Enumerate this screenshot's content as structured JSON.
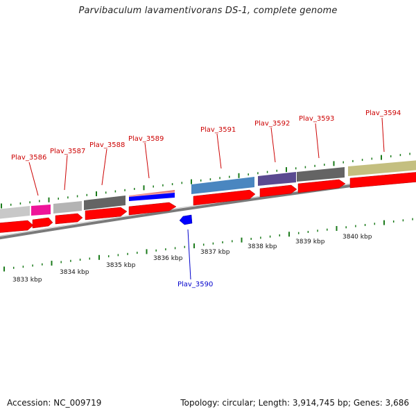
{
  "title": "Parvibaculum lavamentivorans DS-1, complete genome",
  "footer": {
    "accession": "Accession: NC_009719",
    "summary": "Topology: circular; Length: 3,914,745 bp; Genes: 3,686"
  },
  "colors": {
    "forward_gene": "#ff0000",
    "reverse_gene": "#0000ff",
    "backbone": "#808080",
    "tick": "#1a7a1a",
    "label_forward": "#cc0000",
    "label_reverse": "#0000cc"
  },
  "scale_labels": [
    "3833 kbp",
    "3834 kbp",
    "3835 kbp",
    "3836 kbp",
    "3837 kbp",
    "3838 kbp",
    "3839 kbp",
    "3840 kbp"
  ],
  "genes": [
    {
      "locus": "",
      "strand": "forward",
      "cog_color": "#c8c8c8"
    },
    {
      "locus": "",
      "strand": "forward",
      "cog_color": "#ee1599"
    },
    {
      "locus": "Plav_3586",
      "strand": "forward",
      "cog_color": "#ee1599"
    },
    {
      "locus": "Plav_3587",
      "strand": "forward",
      "cog_color": "#b4b4b4"
    },
    {
      "locus": "Plav_3588",
      "strand": "forward",
      "cog_color": "#646464"
    },
    {
      "locus": "Plav_3589",
      "strand": "forward",
      "cog_color": "#e07070"
    },
    {
      "locus": "Plav_3590",
      "strand": "reverse",
      "cog_color": "#0000ff"
    },
    {
      "locus": "Plav_3591",
      "strand": "forward",
      "cog_color": "#4a86c0"
    },
    {
      "locus": "Plav_3592",
      "strand": "forward",
      "cog_color": "#5a4a90"
    },
    {
      "locus": "Plav_3593",
      "strand": "forward",
      "cog_color": "#646464"
    },
    {
      "locus": "Plav_3594",
      "strand": "forward",
      "cog_color": "#c4bf80"
    }
  ]
}
